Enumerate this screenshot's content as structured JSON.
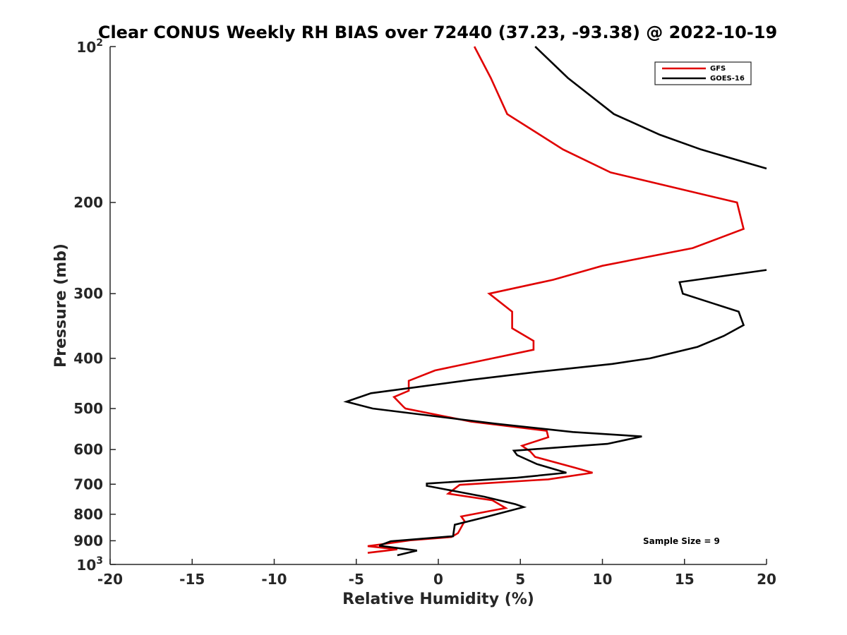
{
  "chart_data": {
    "type": "line",
    "title": "Clear CONUS Weekly RH BIAS over 72440 (37.23, -93.38) @ 2022-10-19",
    "xlabel": "Relative Humidity (%)",
    "ylabel": "Pressure (mb)",
    "xlim": [
      -20,
      20
    ],
    "ylim": [
      100,
      1000
    ],
    "yscale": "log",
    "y_reversed": true,
    "x_ticks": [
      "-20",
      "-15",
      "-10",
      "-5",
      "0",
      "5",
      "10",
      "15",
      "20"
    ],
    "y_ticks": [
      "200",
      "300",
      "400",
      "500",
      "600",
      "700",
      "800",
      "900"
    ],
    "y_tick_top": {
      "base": "10",
      "exp": "2"
    },
    "y_tick_bottom": {
      "base": "10",
      "exp": "3"
    },
    "grid": false,
    "legend_position": "top-right",
    "annotation": "Sample Size = 9",
    "series": [
      {
        "name": "GFS",
        "color": "#e00000",
        "points": [
          [
            2.2,
            100
          ],
          [
            3.2,
            115
          ],
          [
            4.2,
            135
          ],
          [
            7.6,
            158
          ],
          [
            10.5,
            175
          ],
          [
            18.2,
            200
          ],
          [
            18.6,
            225
          ],
          [
            15.5,
            245
          ],
          [
            10.0,
            265
          ],
          [
            7.0,
            282
          ],
          [
            3.1,
            300
          ],
          [
            4.5,
            325
          ],
          [
            4.5,
            350
          ],
          [
            5.8,
            370
          ],
          [
            5.8,
            385
          ],
          [
            3.3,
            400
          ],
          [
            -0.2,
            422
          ],
          [
            -1.8,
            442
          ],
          [
            -1.8,
            462
          ],
          [
            -2.7,
            475
          ],
          [
            -2.1,
            497
          ],
          [
            -2.0,
            500
          ],
          [
            2.0,
            530
          ],
          [
            6.6,
            552
          ],
          [
            6.7,
            568
          ],
          [
            5.1,
            590
          ],
          [
            5.6,
            605
          ],
          [
            5.9,
            620
          ],
          [
            8.3,
            650
          ],
          [
            9.4,
            665
          ],
          [
            6.7,
            685
          ],
          [
            1.3,
            702
          ],
          [
            0.6,
            730
          ],
          [
            3.3,
            752
          ],
          [
            4.1,
            778
          ],
          [
            1.4,
            808
          ],
          [
            1.6,
            825
          ],
          [
            1.2,
            870
          ],
          [
            0.8,
            885
          ],
          [
            -1.7,
            898
          ],
          [
            -3.2,
            912
          ],
          [
            -4.3,
            922
          ],
          [
            -2.5,
            935
          ],
          [
            -4.3,
            950
          ]
        ]
      },
      {
        "name": "GOES-16",
        "color": "#000000",
        "points": [
          [
            5.9,
            100
          ],
          [
            7.9,
            115
          ],
          [
            10.7,
            135
          ],
          [
            13.5,
            148
          ],
          [
            16.0,
            158
          ],
          [
            20.0,
            172
          ],
          [
            null,
            null
          ],
          [
            20.0,
            270
          ],
          [
            14.7,
            285
          ],
          [
            14.9,
            300
          ],
          [
            18.3,
            325
          ],
          [
            18.6,
            345
          ],
          [
            17.4,
            362
          ],
          [
            15.8,
            380
          ],
          [
            12.9,
            400
          ],
          [
            10.6,
            410
          ],
          [
            6.0,
            425
          ],
          [
            2.0,
            440
          ],
          [
            -4.1,
            467
          ],
          [
            -5.6,
            485
          ],
          [
            -4.0,
            500
          ],
          [
            3.5,
            535
          ],
          [
            8.2,
            555
          ],
          [
            12.4,
            566
          ],
          [
            10.3,
            585
          ],
          [
            4.6,
            603
          ],
          [
            4.8,
            615
          ],
          [
            6.0,
            640
          ],
          [
            7.8,
            665
          ],
          [
            4.8,
            680
          ],
          [
            -0.7,
            698
          ],
          [
            -0.7,
            705
          ],
          [
            2.8,
            740
          ],
          [
            4.7,
            765
          ],
          [
            5.2,
            775
          ],
          [
            2.9,
            810
          ],
          [
            1.0,
            838
          ],
          [
            0.9,
            882
          ],
          [
            -2.9,
            902
          ],
          [
            -3.6,
            920
          ],
          [
            -1.3,
            940
          ],
          [
            -2.5,
            960
          ]
        ]
      }
    ]
  }
}
